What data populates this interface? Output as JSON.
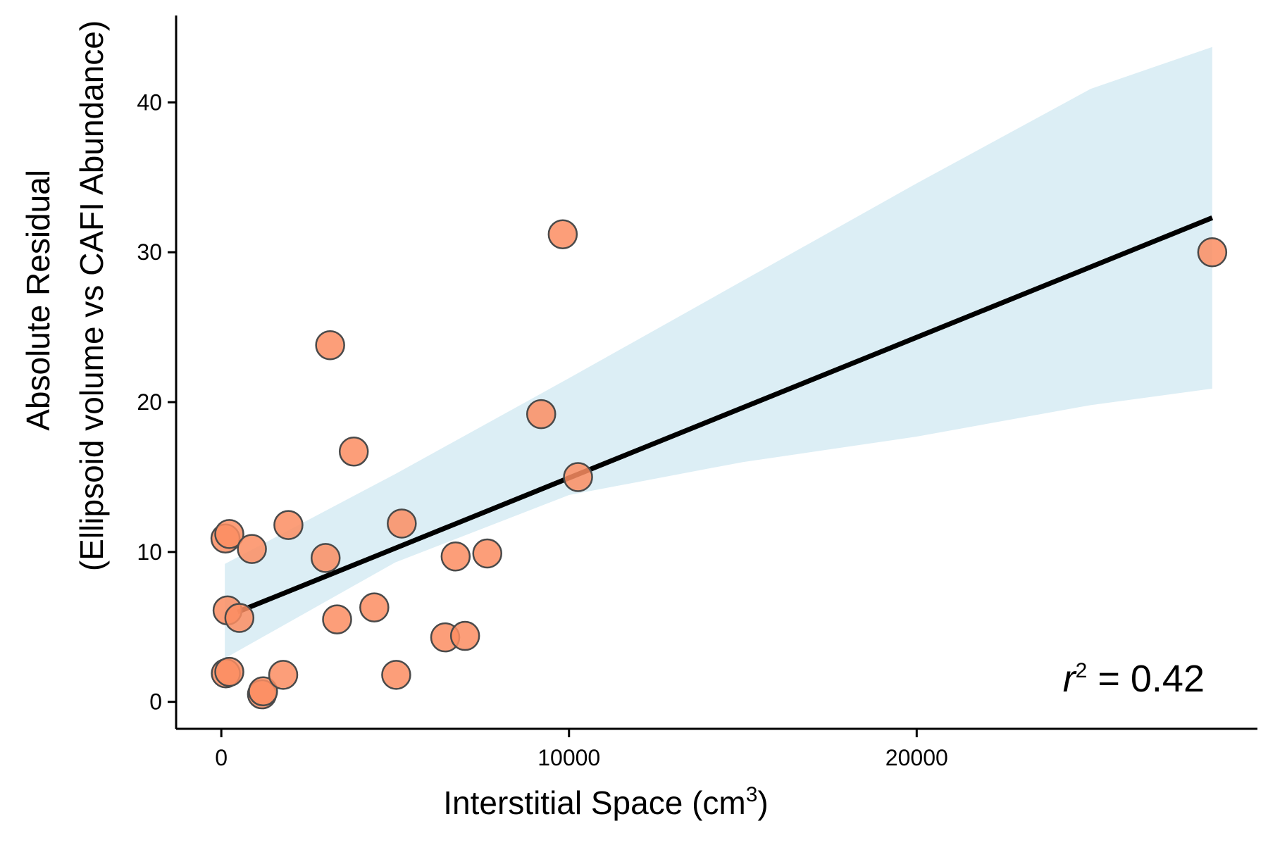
{
  "chart_data": {
    "type": "scatter",
    "title": "",
    "xlabel": "Interstitial Space (cm",
    "xlabel_sup": "3",
    "xlabel_close": ")",
    "ylabel_line1": "Absolute Residual",
    "ylabel_line2": "(Ellipsoid volume vs CAFI Abundance)",
    "xlim": [
      -1300,
      29800
    ],
    "ylim": [
      -1.8,
      45.8
    ],
    "x_ticks": [
      0,
      10000,
      20000
    ],
    "x_tick_labels": [
      "0",
      "10000",
      "20000"
    ],
    "y_ticks": [
      0,
      10,
      20,
      30,
      40
    ],
    "y_tick_labels": [
      "0",
      "10",
      "20",
      "30",
      "40"
    ],
    "grid": false,
    "legend": "none",
    "points": [
      {
        "x": 120,
        "y": 10.9
      },
      {
        "x": 230,
        "y": 11.2
      },
      {
        "x": 880,
        "y": 10.2
      },
      {
        "x": 180,
        "y": 6.1
      },
      {
        "x": 520,
        "y": 5.6
      },
      {
        "x": 130,
        "y": 1.9
      },
      {
        "x": 230,
        "y": 2.0
      },
      {
        "x": 1170,
        "y": 0.5
      },
      {
        "x": 1200,
        "y": 0.7
      },
      {
        "x": 1780,
        "y": 1.8
      },
      {
        "x": 1930,
        "y": 11.8
      },
      {
        "x": 3000,
        "y": 9.6
      },
      {
        "x": 3130,
        "y": 23.8
      },
      {
        "x": 3330,
        "y": 5.5
      },
      {
        "x": 3810,
        "y": 16.7
      },
      {
        "x": 4400,
        "y": 6.3
      },
      {
        "x": 5030,
        "y": 1.8
      },
      {
        "x": 5190,
        "y": 11.9
      },
      {
        "x": 6440,
        "y": 4.3
      },
      {
        "x": 6740,
        "y": 9.7
      },
      {
        "x": 7010,
        "y": 4.4
      },
      {
        "x": 7650,
        "y": 9.9
      },
      {
        "x": 9200,
        "y": 19.2
      },
      {
        "x": 9820,
        "y": 31.2
      },
      {
        "x": 10260,
        "y": 15.0
      },
      {
        "x": 28500,
        "y": 30.0
      }
    ],
    "fit_line": {
      "x": [
        470,
        28500
      ],
      "y": [
        6.0,
        32.3
      ]
    },
    "confidence_band": {
      "x": [
        100,
        5000,
        10000,
        15000,
        20000,
        25000,
        28500
      ],
      "upper": [
        9.2,
        15.2,
        21.6,
        28.1,
        34.6,
        40.9,
        43.7
      ],
      "lower": [
        2.9,
        9.3,
        13.8,
        16.0,
        17.7,
        19.8,
        20.9
      ]
    },
    "annotation": {
      "r_label": "r",
      "r_sup": "2",
      "text": " = 0.42"
    },
    "colors": {
      "point_fill": "#FC8D62",
      "point_stroke": "#4a4a4a",
      "line": "#000000",
      "band": "#DCEEF5",
      "axis": "#000000"
    }
  }
}
